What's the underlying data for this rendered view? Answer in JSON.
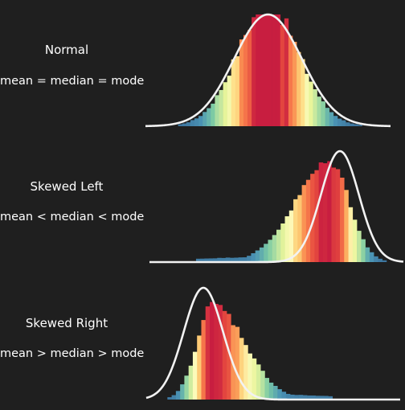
{
  "chart_data": [
    {
      "type": "bar",
      "title": "Normal",
      "subtitle": "mean = median = mode",
      "xlim": [
        -4,
        4
      ],
      "bins": 60,
      "curve": {
        "kind": "normal",
        "mu": 0,
        "sigma": 1.1,
        "peak": 1.0
      },
      "hist": {
        "kind": "normal",
        "mu": 0,
        "sigma": 1.0,
        "peak": 1.08,
        "noise": 0.07
      }
    },
    {
      "type": "bar",
      "title": "Skewed Left",
      "subtitle": "mean < median < mode",
      "xlim": [
        -4,
        4
      ],
      "bins": 60,
      "curve": {
        "kind": "normal",
        "mu": 2.0,
        "sigma": 0.6,
        "peak": 1.0
      },
      "hist": {
        "kind": "skew",
        "mode": 1.7,
        "sigma_short": 0.6,
        "sigma_long": 1.1,
        "tail_start": -2.5,
        "tail_level": 0.05,
        "peak": 0.9,
        "noise": 0.05,
        "long_side": "left"
      }
    },
    {
      "type": "bar",
      "title": "Skewed Right",
      "subtitle": "mean > median > mode",
      "xlim": [
        -4,
        4
      ],
      "bins": 60,
      "curve": {
        "kind": "normal",
        "mu": -2.2,
        "sigma": 0.62,
        "peak": 1.0
      },
      "hist": {
        "kind": "skew",
        "mode": -1.9,
        "sigma_short": 0.5,
        "sigma_long": 1.0,
        "tail_start": 1.8,
        "tail_level": 0.05,
        "peak": 0.85,
        "noise": 0.05,
        "long_side": "right"
      }
    }
  ],
  "colors": {
    "background": "#1f1f1f",
    "curve": "#f2f2f2",
    "palette_low_to_high": [
      "#3a6e9a",
      "#4b95b5",
      "#7ccba4",
      "#b9e3a1",
      "#e9f59a",
      "#fdfbbd",
      "#fee08b",
      "#fdb863",
      "#f87d4c",
      "#e5483f",
      "#c81e40"
    ]
  }
}
